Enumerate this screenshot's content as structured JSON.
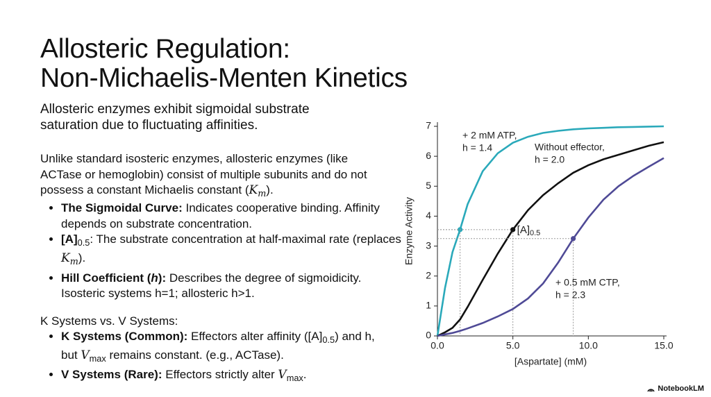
{
  "header": {
    "title": [
      "Allosteric Regulation:",
      "Non-Michaelis-Menten Kinetics"
    ],
    "subtitle": "Allosteric enzymes exhibit sigmoidal substrate saturation due to fluctuating affinities."
  },
  "body": {
    "paragraph": [
      {
        "t": "Unlike standard isosteric enzymes, allosteric enzymes (like ACTase or hemoglobin) consist of multiple subunits and do not possess a constant Michaelis constant ("
      },
      {
        "t": "K",
        "s": "i"
      },
      {
        "t": "m",
        "s": "isub"
      },
      {
        "t": ")."
      }
    ],
    "bullets": [
      [
        {
          "t": "The Sigmoidal Curve:",
          "s": "b"
        },
        {
          "t": " Indicates cooperative binding. Affinity depends on substrate concentration."
        }
      ],
      [
        {
          "t": "[A]",
          "s": "b"
        },
        {
          "t": "0.5",
          "s": "sub"
        },
        {
          "t": ": The substrate concentration at half-maximal rate (replaces "
        },
        {
          "t": "K",
          "s": "i"
        },
        {
          "t": "m",
          "s": "isub"
        },
        {
          "t": ")."
        }
      ],
      [
        {
          "t": "Hill Coefficient (",
          "s": "b"
        },
        {
          "t": "h",
          "s": "bi"
        },
        {
          "t": "):",
          "s": "b"
        },
        {
          "t": " Describes the degree of sigmoidicity. Isosteric systems h=1; allosteric h>1."
        }
      ]
    ],
    "heading2": "K Systems vs. V Systems:",
    "bullets2": [
      [
        {
          "t": "K Systems (Common):",
          "s": "b"
        },
        {
          "t": " Effectors alter affinity ([A]"
        },
        {
          "t": "0.5",
          "s": "sub"
        },
        {
          "t": ") and h, but "
        },
        {
          "t": "V",
          "s": "i"
        },
        {
          "t": "max",
          "s": "sub"
        },
        {
          "t": " remains constant. (e.g., ACTase)."
        }
      ],
      [
        {
          "t": "V Systems (Rare):",
          "s": "b"
        },
        {
          "t": " Effectors strictly alter "
        },
        {
          "t": "V",
          "s": "i"
        },
        {
          "t": "max",
          "s": "sub"
        },
        {
          "t": "."
        }
      ]
    ]
  },
  "chart_data": {
    "type": "line",
    "x_label": "[Aspartate] (mM)",
    "y_label": "Enzyme Activity",
    "x": [
      0,
      0.5,
      1,
      1.5,
      2,
      3,
      4,
      5,
      6,
      7,
      8,
      9,
      10,
      11,
      12,
      13,
      14,
      15
    ],
    "series": [
      {
        "name": "+ 2 mM ATP,",
        "note": "h = 1.4",
        "color": "#2aa9ba",
        "values": [
          0,
          1.6,
          2.8,
          3.55,
          4.4,
          5.5,
          6.1,
          6.45,
          6.65,
          6.78,
          6.85,
          6.9,
          6.93,
          6.95,
          6.97,
          6.98,
          6.99,
          7.0
        ],
        "marker": {
          "x": 1.5,
          "y": 3.55
        }
      },
      {
        "name": "Without effector,",
        "note": "h = 2.0",
        "color": "#111111",
        "values": [
          0,
          0.12,
          0.27,
          0.55,
          0.97,
          1.87,
          2.75,
          3.55,
          4.2,
          4.7,
          5.1,
          5.45,
          5.7,
          5.9,
          6.05,
          6.2,
          6.35,
          6.47
        ],
        "marker": {
          "x": 5,
          "y": 3.55,
          "label": "[A]",
          "sub": "0.5"
        }
      },
      {
        "name": "+ 0.5 mM CTP,",
        "note": "h = 2.3",
        "color": "#4f4a96",
        "values": [
          0,
          0.05,
          0.1,
          0.17,
          0.25,
          0.43,
          0.65,
          0.9,
          1.25,
          1.75,
          2.45,
          3.25,
          3.95,
          4.55,
          5.0,
          5.35,
          5.65,
          5.94
        ],
        "marker": {
          "x": 9,
          "y": 3.25
        }
      }
    ],
    "xlim": [
      0,
      15
    ],
    "ylim": [
      0,
      7
    ],
    "xticks": [
      {
        "value": 0,
        "label": "0.0"
      },
      {
        "value": 5,
        "label": "5.0"
      },
      {
        "value": 10,
        "label": "10.0"
      },
      {
        "value": 15,
        "label": "15.0"
      }
    ],
    "yticks": [
      0,
      1,
      2,
      3,
      4,
      5,
      6,
      7
    ]
  },
  "footer": "NotebookLM"
}
